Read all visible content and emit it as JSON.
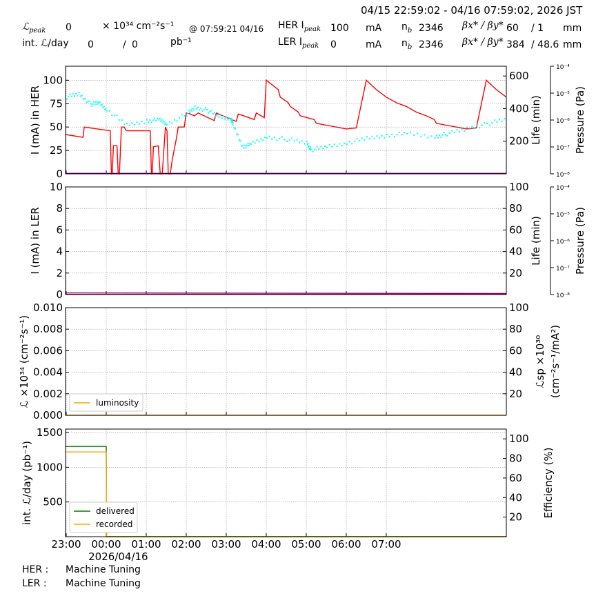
{
  "header": {
    "time_range": "04/15 22:59:02 - 04/16 07:59:02, 2026 JST",
    "lum_peak_label": "ℒ",
    "lum_peak_sub": "peak",
    "lum_peak_value": "0",
    "lum_unit": "× 10³⁴ cm⁻²s⁻¹",
    "lum_peak_time": "@ 07:59:21 04/16",
    "int_lum_label": "int. ℒ/day",
    "int_lum_value": "0",
    "int_lum_sep": "/",
    "int_lum_value2": "0",
    "int_lum_unit": "pb⁻¹",
    "her_label": "HER I",
    "her_sub": "peak",
    "her_current": "100",
    "her_unit": "mA",
    "her_nb_label": "n",
    "her_nb_sub": "b",
    "her_nb": "2346",
    "beta_label": "βx* / βy*",
    "her_beta_x": "60",
    "her_beta_y": "/ 1",
    "beta_unit": "mm",
    "ler_label": "LER I",
    "ler_sub": "peak",
    "ler_current": "0",
    "ler_unit": "mA",
    "ler_nb": "2346",
    "ler_beta_x": "384",
    "ler_beta_y": "/ 48.6",
    "ler_beta_unit": "mm"
  },
  "footer": {
    "her_status_label": "HER :",
    "her_status": "Machine Tuning",
    "ler_status_label": "LER :",
    "ler_status": "Machine Tuning"
  },
  "colors": {
    "her": "#ff0000",
    "her_life": "#00ffff",
    "ler": "#800080",
    "luminosity": "#ffa500",
    "delivered": "#008000",
    "recorded": "#ffa500",
    "grid": "#999999"
  },
  "chart_data": [
    {
      "type": "line",
      "panel": "her",
      "ylabel": "I (mA) in HER",
      "y2label": "Life (min)",
      "y3label": "Pressure (Pa)",
      "ylim": [
        0,
        115
      ],
      "y2lim": [
        0,
        660
      ],
      "yticks": [
        0,
        25,
        50,
        75,
        100
      ],
      "y2ticks": [
        200,
        400,
        600
      ],
      "pressure_ticks": [
        "10⁻⁸",
        "10⁻⁷",
        "10⁻⁶",
        "10⁻⁵",
        "10⁻⁴"
      ],
      "grid": true,
      "series": [
        {
          "name": "",
          "color": "#ff0000",
          "x": [
            -0.017,
            0.42,
            0.45,
            1.1,
            1.13,
            1.15,
            1.18,
            1.27,
            1.3,
            1.33,
            1.38,
            1.45,
            1.5,
            2.1,
            2.13,
            2.15,
            2.18,
            2.3,
            2.35,
            2.4,
            2.48,
            2.52,
            2.55,
            2.6,
            2.65,
            2.75,
            2.8,
            2.95,
            3.0,
            3.1,
            3.2,
            3.3,
            3.35,
            3.7,
            3.75,
            4.25,
            4.3,
            4.7,
            4.75,
            4.95,
            5.0,
            5.3,
            5.35,
            5.55,
            5.6,
            5.8,
            5.85,
            6.2,
            6.25,
            6.5,
            6.75,
            7.0,
            7.25,
            7.5,
            7.75,
            8.0,
            8.25,
            8.5,
            8.75,
            9.0,
            9.2,
            9.25,
            9.5,
            9.75,
            10.0,
            10.25,
            10.5,
            10.75,
            11.0
          ],
          "y": [
            42,
            39,
            50,
            46,
            0,
            0,
            30,
            30,
            0,
            0,
            50,
            50,
            46,
            46,
            0,
            0,
            29,
            30,
            0,
            0,
            50,
            46,
            0,
            0,
            15,
            37,
            50,
            50,
            65,
            64,
            62,
            65,
            64,
            57,
            65,
            56,
            64,
            58,
            65,
            60,
            100,
            90,
            82,
            76,
            72,
            66,
            62,
            58,
            54,
            52,
            50,
            48,
            49,
            100,
            90,
            82,
            76,
            72,
            66,
            62,
            58,
            54,
            52,
            50,
            48,
            49,
            100,
            90,
            82
          ]
        },
        {
          "name": "",
          "color": "#00ffff",
          "axis": "y2",
          "x": [
            0.0,
            0.3,
            0.6,
            0.8,
            1.0,
            1.5,
            2.0,
            2.3,
            2.5,
            3.0,
            3.2,
            3.5,
            3.8,
            4.1,
            4.15,
            4.4,
            4.6,
            5.0,
            5.5,
            6.0,
            6.1,
            6.5,
            7.0,
            7.5,
            8.0,
            8.5,
            9.2,
            9.5,
            10.0,
            10.5,
            11.0
          ],
          "y": [
            475,
            495,
            430,
            440,
            400,
            300,
            330,
            335,
            310,
            370,
            410,
            395,
            355,
            345,
            305,
            170,
            185,
            230,
            215,
            195,
            150,
            170,
            195,
            220,
            240,
            250,
            230,
            250,
            280,
            310,
            340
          ]
        },
        {
          "name": "",
          "color": "#800080",
          "x": [
            -0.017,
            11.0
          ],
          "y": [
            0.5,
            0.5
          ]
        }
      ]
    },
    {
      "type": "line",
      "panel": "ler",
      "ylabel": "I (mA) in LER",
      "y2label": "Life (min)",
      "y3label": "Pressure (Pa)",
      "ylim": [
        0,
        10
      ],
      "y2lim": [
        0,
        100
      ],
      "yticks": [
        0,
        2,
        4,
        6,
        8,
        10
      ],
      "y2ticks": [
        20,
        40,
        60,
        80,
        100
      ],
      "pressure_ticks": [
        "10⁻⁸",
        "10⁻⁷",
        "10⁻⁶",
        "10⁻⁵",
        "10⁻⁴"
      ],
      "grid": true,
      "series": [
        {
          "name": "",
          "color": "#800080",
          "x": [
            -0.017,
            11.0
          ],
          "y": [
            0.15,
            0.1
          ]
        },
        {
          "name": "",
          "color": "#ff0000",
          "x": [
            -0.017,
            11.0
          ],
          "y": [
            0.02,
            0.02
          ]
        }
      ]
    },
    {
      "type": "line",
      "panel": "luminosity",
      "ylabel": "ℒ ×10³⁴ (cm⁻²s⁻¹)",
      "y2label": "ℒsp ×10³⁰",
      "y2label_line2": "(cm⁻²s⁻¹/mA²)",
      "ylim": [
        0,
        0.01
      ],
      "y2lim": [
        0,
        100
      ],
      "yticks": [
        "0.000",
        "0.002",
        "0.004",
        "0.006",
        "0.008",
        "0.010"
      ],
      "y2ticks": [
        20,
        40,
        60,
        80,
        100
      ],
      "grid": true,
      "legend": "lower-left",
      "series": [
        {
          "name": "luminosity",
          "color": "#ffa500",
          "x": [
            -0.017,
            11.0
          ],
          "y": [
            0,
            0
          ]
        }
      ]
    },
    {
      "type": "line",
      "panel": "integrated",
      "ylabel": "int. ℒ/day (pb⁻¹)",
      "y2label": "Efficiency (%)",
      "ylim": [
        0,
        1550
      ],
      "y2lim": [
        0,
        110
      ],
      "yticks": [
        500,
        1000,
        1500
      ],
      "y2ticks": [
        20,
        40,
        60,
        80,
        100
      ],
      "xticks": [
        "23:00",
        "00:00",
        "01:00",
        "02:00",
        "03:00",
        "04:00",
        "05:00",
        "06:00",
        "07:00"
      ],
      "xdate": "2026/04/16",
      "grid": true,
      "legend": "lower-left",
      "series": [
        {
          "name": "delivered",
          "color": "#008000",
          "x": [
            -0.017,
            1.0,
            1.01,
            11.0
          ],
          "y": [
            1300,
            1300,
            0,
            0
          ]
        },
        {
          "name": "recorded",
          "color": "#ffa500",
          "x": [
            -0.017,
            1.0,
            1.01,
            11.0
          ],
          "y": [
            1220,
            1220,
            0,
            0
          ]
        }
      ]
    }
  ]
}
